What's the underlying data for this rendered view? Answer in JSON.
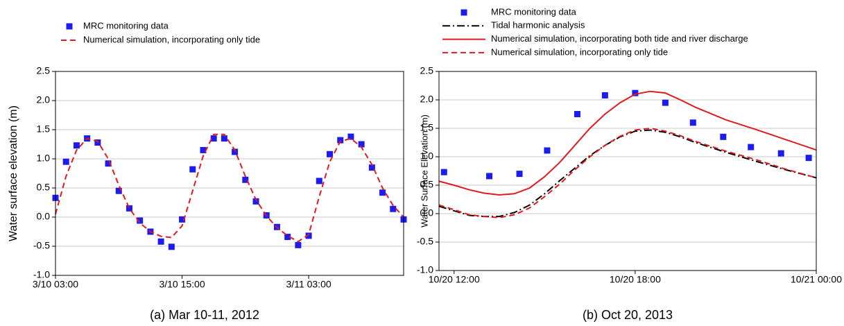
{
  "chart_data": [
    {
      "type": "line",
      "ylabel": "Water surface elevation (m)",
      "caption": "(a) Mar 10-11, 2012",
      "xlim": [
        "3/10 03:00",
        "3/11 12:00"
      ],
      "xticks": [
        "3/10 03:00",
        "3/10 15:00",
        "3/11 03:00"
      ],
      "ylim": [
        -1.0,
        2.5
      ],
      "yticks": [
        {
          "value": -1.0,
          "label": "-1.0"
        },
        -0.5,
        {
          "value": 0,
          "label": "0.0"
        },
        0.5,
        {
          "value": 1.0,
          "label": "1.0"
        },
        1.5,
        {
          "value": 2.0,
          "label": "2.0"
        },
        2.5
      ],
      "grid": true,
      "series": [
        {
          "name": "MRC monitoring data",
          "kind": "scatter",
          "color": "#1c1cf0",
          "x": [
            "3/10 03:00",
            "3/10 04:00",
            "3/10 05:00",
            "3/10 06:00",
            "3/10 07:00",
            "3/10 08:00",
            "3/10 09:00",
            "3/10 10:00",
            "3/10 11:00",
            "3/10 12:00",
            "3/10 13:00",
            "3/10 14:00",
            "3/10 15:00",
            "3/10 16:00",
            "3/10 17:00",
            "3/10 18:00",
            "3/10 19:00",
            "3/10 20:00",
            "3/10 21:00",
            "3/10 22:00",
            "3/10 23:00",
            "3/11 00:00",
            "3/11 01:00",
            "3/11 02:00",
            "3/11 03:00",
            "3/11 04:00",
            "3/11 05:00",
            "3/11 06:00",
            "3/11 07:00",
            "3/11 08:00",
            "3/11 09:00",
            "3/11 10:00",
            "3/11 11:00",
            "3/11 12:00"
          ],
          "values": [
            0.33,
            0.95,
            1.23,
            1.35,
            1.28,
            0.92,
            0.45,
            0.15,
            -0.06,
            -0.25,
            -0.42,
            -0.51,
            -0.04,
            0.82,
            1.15,
            1.35,
            1.35,
            1.12,
            0.64,
            0.27,
            0.03,
            -0.17,
            -0.34,
            -0.48,
            -0.32,
            0.62,
            1.08,
            1.32,
            1.38,
            1.25,
            0.85,
            0.42,
            0.14,
            -0.04
          ]
        },
        {
          "name": "Numerical simulation, incorporating only tide",
          "kind": "line",
          "dash": "dashed",
          "color": "#e0191f",
          "x": [
            "3/10 03:00",
            "3/10 04:00",
            "3/10 05:00",
            "3/10 06:00",
            "3/10 07:00",
            "3/10 08:00",
            "3/10 09:00",
            "3/10 10:00",
            "3/10 11:00",
            "3/10 12:00",
            "3/10 13:00",
            "3/10 14:00",
            "3/10 15:00",
            "3/10 16:00",
            "3/10 17:00",
            "3/10 18:00",
            "3/10 19:00",
            "3/10 20:00",
            "3/10 21:00",
            "3/10 22:00",
            "3/10 23:00",
            "3/11 00:00",
            "3/11 01:00",
            "3/11 02:00",
            "3/11 03:00",
            "3/11 04:00",
            "3/11 05:00",
            "3/11 06:00",
            "3/11 07:00",
            "3/11 08:00",
            "3/11 09:00",
            "3/11 10:00",
            "3/11 11:00",
            "3/11 12:00"
          ],
          "values": [
            0.05,
            0.7,
            1.15,
            1.35,
            1.3,
            1.0,
            0.55,
            0.15,
            -0.1,
            -0.25,
            -0.33,
            -0.35,
            -0.15,
            0.45,
            1.05,
            1.42,
            1.42,
            1.15,
            0.7,
            0.3,
            0.02,
            -0.18,
            -0.32,
            -0.42,
            -0.3,
            0.35,
            0.95,
            1.3,
            1.35,
            1.2,
            0.9,
            0.5,
            0.2,
            0.0
          ]
        }
      ]
    },
    {
      "type": "line",
      "ylabel": "Water Surface Elevation (m)",
      "caption": "(b) Oct 20, 2013",
      "xlim": [
        "10/20 11:30",
        "10/21 00:00"
      ],
      "xticks": [
        "10/20 12:00",
        "10/20 18:00",
        "10/21 00:00"
      ],
      "ylim": [
        -1.0,
        2.5
      ],
      "yticks": [
        {
          "value": -1.0,
          "label": "-1.0"
        },
        -0.5,
        {
          "value": 0,
          "label": "0.0"
        },
        0.5,
        {
          "value": 1.0,
          "label": "1.0"
        },
        1.5,
        {
          "value": 2.0,
          "label": "2.0"
        },
        2.5
      ],
      "grid": true,
      "series": [
        {
          "name": "MRC monitoring data",
          "kind": "scatter",
          "color": "#1c1cf0",
          "x": [
            "10/20 11:40",
            "10/20 13:10",
            "10/20 14:10",
            "10/20 15:05",
            "10/20 16:05",
            "10/20 17:00",
            "10/20 18:00",
            "10/20 19:00",
            "10/20 19:55",
            "10/20 20:55",
            "10/20 21:50",
            "10/20 22:50",
            "10/20 23:45"
          ],
          "values": [
            0.73,
            0.66,
            0.7,
            1.11,
            1.75,
            2.08,
            2.12,
            1.95,
            1.6,
            1.35,
            1.17,
            1.06,
            0.98
          ]
        },
        {
          "name": "Tidal harmonic analysis",
          "kind": "line",
          "dash": "dashdot",
          "color": "#000000",
          "x": [
            "10/20 11:30",
            "10/20 12:00",
            "10/20 12:30",
            "10/20 13:00",
            "10/20 13:30",
            "10/20 14:00",
            "10/20 14:30",
            "10/20 15:00",
            "10/20 15:30",
            "10/20 16:00",
            "10/20 16:30",
            "10/20 17:00",
            "10/20 17:30",
            "10/20 18:00",
            "10/20 18:30",
            "10/20 19:00",
            "10/20 19:30",
            "10/20 20:00",
            "10/20 21:00",
            "10/20 22:00",
            "10/20 23:00",
            "10/21 00:00"
          ],
          "values": [
            0.13,
            0.05,
            -0.03,
            -0.05,
            -0.05,
            0.02,
            0.15,
            0.35,
            0.58,
            0.8,
            1.02,
            1.2,
            1.35,
            1.45,
            1.47,
            1.43,
            1.35,
            1.25,
            1.08,
            0.92,
            0.77,
            0.63
          ]
        },
        {
          "name": "Numerical simulation, incorporating both tide and river discharge",
          "kind": "line",
          "dash": "solid",
          "color": "#e0191f",
          "x": [
            "10/20 11:30",
            "10/20 12:00",
            "10/20 12:30",
            "10/20 13:00",
            "10/20 13:30",
            "10/20 14:00",
            "10/20 14:30",
            "10/20 15:00",
            "10/20 15:30",
            "10/20 16:00",
            "10/20 16:30",
            "10/20 17:00",
            "10/20 17:30",
            "10/20 18:00",
            "10/20 18:30",
            "10/20 19:00",
            "10/20 19:30",
            "10/20 20:00",
            "10/20 21:00",
            "10/20 22:00",
            "10/20 23:00",
            "10/21 00:00"
          ],
          "values": [
            0.57,
            0.5,
            0.42,
            0.36,
            0.33,
            0.35,
            0.45,
            0.65,
            0.9,
            1.2,
            1.5,
            1.75,
            1.95,
            2.1,
            2.15,
            2.12,
            2.0,
            1.87,
            1.65,
            1.48,
            1.3,
            1.12
          ]
        },
        {
          "name": "Numerical simulation, incorporating only tide",
          "kind": "line",
          "dash": "dashed",
          "color": "#e0191f",
          "x": [
            "10/20 11:30",
            "10/20 12:00",
            "10/20 12:30",
            "10/20 13:00",
            "10/20 13:30",
            "10/20 14:00",
            "10/20 14:30",
            "10/20 15:00",
            "10/20 15:30",
            "10/20 16:00",
            "10/20 16:30",
            "10/20 17:00",
            "10/20 17:30",
            "10/20 18:00",
            "10/20 18:30",
            "10/20 19:00",
            "10/20 19:30",
            "10/20 20:00",
            "10/20 21:00",
            "10/20 22:00",
            "10/20 23:00",
            "10/21 00:00"
          ],
          "values": [
            0.15,
            0.07,
            -0.02,
            -0.05,
            -0.07,
            -0.02,
            0.1,
            0.3,
            0.52,
            0.77,
            1.0,
            1.2,
            1.36,
            1.47,
            1.5,
            1.45,
            1.37,
            1.27,
            1.1,
            0.95,
            0.78,
            0.63
          ]
        }
      ]
    }
  ]
}
